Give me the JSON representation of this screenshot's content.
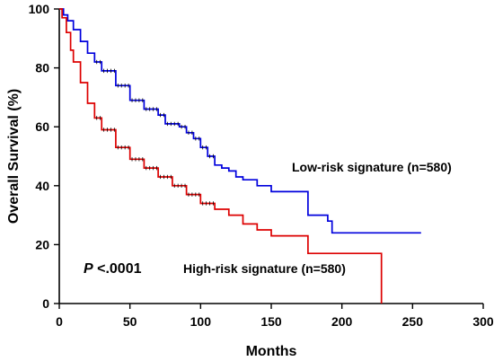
{
  "chart_data": {
    "type": "line",
    "step": true,
    "xlabel": "Months",
    "ylabel": "Overall Survival (%)",
    "xlim": [
      0,
      300
    ],
    "ylim": [
      0,
      100
    ],
    "xticks": [
      0,
      50,
      100,
      150,
      200,
      250,
      300
    ],
    "yticks": [
      0,
      20,
      40,
      60,
      80,
      100
    ],
    "grid": false,
    "legend": "none",
    "colors": {
      "low": "#0000dd",
      "high": "#dd0000",
      "censor": "#000000"
    },
    "annotations": {
      "low_label": "Low-risk signature (n=580)",
      "high_label": "High-risk signature (n=580)",
      "p_label": "P",
      "p_value": " <.0001"
    },
    "series": [
      {
        "id": "low",
        "x": [
          0,
          3,
          6,
          10,
          15,
          20,
          25,
          30,
          40,
          50,
          60,
          70,
          75,
          80,
          85,
          90,
          95,
          100,
          105,
          110,
          115,
          120,
          125,
          130,
          140,
          150,
          155,
          172,
          176,
          186,
          190,
          193,
          195,
          200,
          210,
          220,
          230,
          240,
          256
        ],
        "y": [
          100,
          98,
          96,
          93,
          89,
          85,
          82,
          79,
          74,
          69,
          66,
          64,
          61,
          61,
          60,
          58,
          56,
          53,
          50,
          47,
          46,
          45,
          43,
          42,
          40,
          38,
          38,
          38,
          30,
          30,
          28,
          24,
          24,
          24,
          24,
          24,
          24,
          24,
          24
        ]
      },
      {
        "id": "high",
        "x": [
          0,
          2,
          5,
          8,
          10,
          15,
          20,
          25,
          30,
          40,
          50,
          60,
          70,
          80,
          90,
          100,
          110,
          120,
          130,
          140,
          150,
          160,
          170,
          176,
          200,
          226,
          227,
          228
        ],
        "y": [
          100,
          97,
          92,
          86,
          82,
          75,
          68,
          63,
          59,
          53,
          49,
          46,
          43,
          40,
          37,
          34,
          32,
          30,
          27,
          25,
          23,
          23,
          23,
          17,
          17,
          17,
          17,
          0
        ]
      }
    ]
  }
}
